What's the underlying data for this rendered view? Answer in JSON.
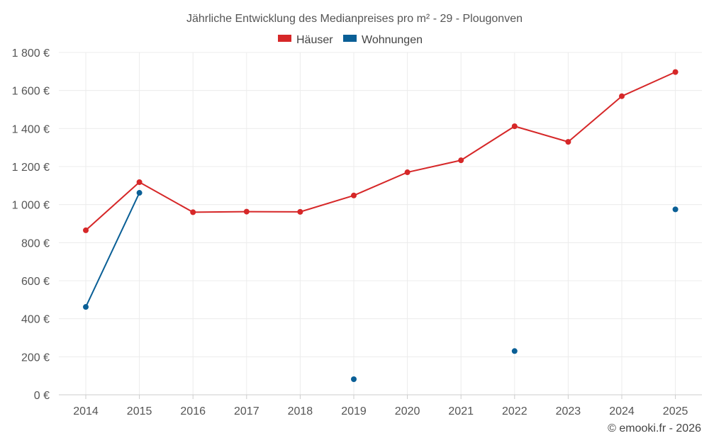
{
  "chart_data": {
    "type": "line",
    "title": "Jährliche Entwicklung des Medianpreises pro m² - 29 - Plougonven",
    "categories": [
      "2014",
      "2015",
      "2016",
      "2017",
      "2018",
      "2019",
      "2020",
      "2021",
      "2022",
      "2023",
      "2024",
      "2025"
    ],
    "ylim": [
      0,
      1800
    ],
    "yticks": [
      0,
      200,
      400,
      600,
      800,
      1000,
      1200,
      1400,
      1600,
      1800
    ],
    "ytick_labels": [
      "0 €",
      "200 €",
      "400 €",
      "600 €",
      "800 €",
      "1 000 €",
      "1 200 €",
      "1 400 €",
      "1 600 €",
      "1 800 €"
    ],
    "grid": true,
    "legend_position": "top-center",
    "series": [
      {
        "name": "Häuser",
        "color": "#d62728",
        "values": [
          865,
          1118,
          960,
          963,
          962,
          1048,
          1170,
          1233,
          1412,
          1330,
          1570,
          1697
        ]
      },
      {
        "name": "Wohnungen",
        "color": "#0a5f96",
        "values": [
          462,
          1062,
          null,
          null,
          null,
          82,
          null,
          null,
          230,
          null,
          null,
          975
        ]
      }
    ]
  },
  "credit": "© emooki.fr - 2026"
}
